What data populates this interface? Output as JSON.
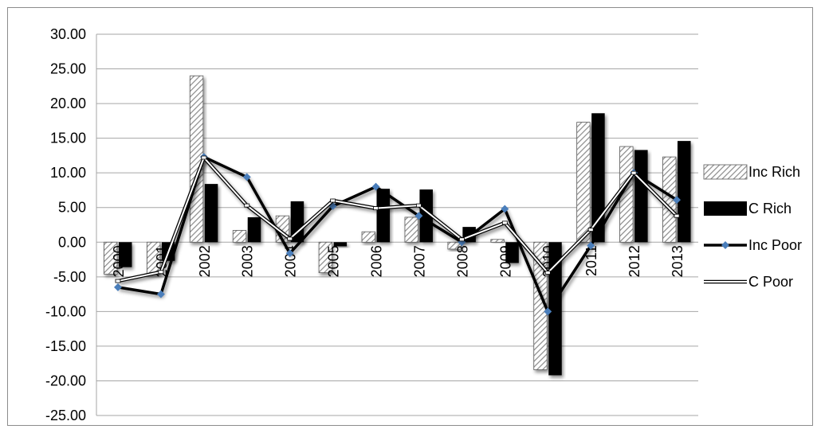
{
  "chart_data": {
    "type": "bar",
    "categories": [
      "2000",
      "2001",
      "2002",
      "2003",
      "2004",
      "2005",
      "2006",
      "2007",
      "2008",
      "2009",
      "2010",
      "2011",
      "2012",
      "2013"
    ],
    "series": [
      {
        "name": "Inc Rich",
        "kind": "bar",
        "pattern": "diagonal-hatch",
        "values": [
          -4.6,
          -4.6,
          24.0,
          1.7,
          3.8,
          -4.4,
          1.5,
          3.6,
          -1.0,
          0.4,
          -18.4,
          17.3,
          13.8,
          12.3
        ]
      },
      {
        "name": "C Rich",
        "kind": "bar",
        "color": "#000000",
        "values": [
          -3.6,
          -2.7,
          8.4,
          3.6,
          5.9,
          -0.6,
          7.7,
          7.6,
          2.2,
          -3.0,
          -19.2,
          18.6,
          13.3,
          14.6
        ]
      },
      {
        "name": "Inc Poor",
        "kind": "line",
        "color": "#000000",
        "marker_color": "#4a7ebb",
        "values": [
          -6.5,
          -7.5,
          12.3,
          9.4,
          -1.6,
          5.2,
          8.0,
          3.8,
          0.0,
          4.8,
          -10.0,
          -0.5,
          10.0,
          6.1
        ]
      },
      {
        "name": "C Poor",
        "kind": "line",
        "color": "#ffffff",
        "outline": "#000000",
        "values": [
          -5.6,
          -4.3,
          12.2,
          5.3,
          0.5,
          6.0,
          4.9,
          5.3,
          0.4,
          2.8,
          -4.4,
          1.8,
          10.0,
          3.8
        ]
      }
    ],
    "yticks": [
      "30.00",
      "25.00",
      "20.00",
      "15.00",
      "10.00",
      "5.00",
      "0.00",
      "-5.00",
      "-10.00",
      "-15.00",
      "-20.00",
      "-25.00"
    ],
    "ylim": [
      -25,
      30
    ],
    "title": "",
    "xlabel": "",
    "ylabel": "",
    "grid": "horizontal",
    "legend_position": "right",
    "x_tick_rotation": -90
  }
}
